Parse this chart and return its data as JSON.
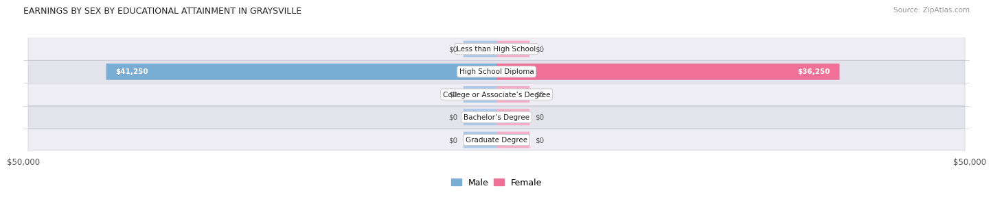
{
  "title": "EARNINGS BY SEX BY EDUCATIONAL ATTAINMENT IN GRAYSVILLE",
  "source": "Source: ZipAtlas.com",
  "categories": [
    "Less than High School",
    "High School Diploma",
    "College or Associate’s Degree",
    "Bachelor’s Degree",
    "Graduate Degree"
  ],
  "male_values": [
    0,
    41250,
    0,
    0,
    0
  ],
  "female_values": [
    0,
    36250,
    0,
    0,
    0
  ],
  "male_bar_color": "#7aadd4",
  "male_stub_color": "#aec9e8",
  "female_bar_color": "#f07098",
  "female_stub_color": "#f5aec8",
  "row_colors": [
    "#ededf3",
    "#e3e3ec"
  ],
  "max_value": 50000,
  "stub_value": 3500,
  "legend_male": "Male",
  "legend_female": "Female",
  "xlabel_left": "$50,000",
  "xlabel_right": "$50,000"
}
